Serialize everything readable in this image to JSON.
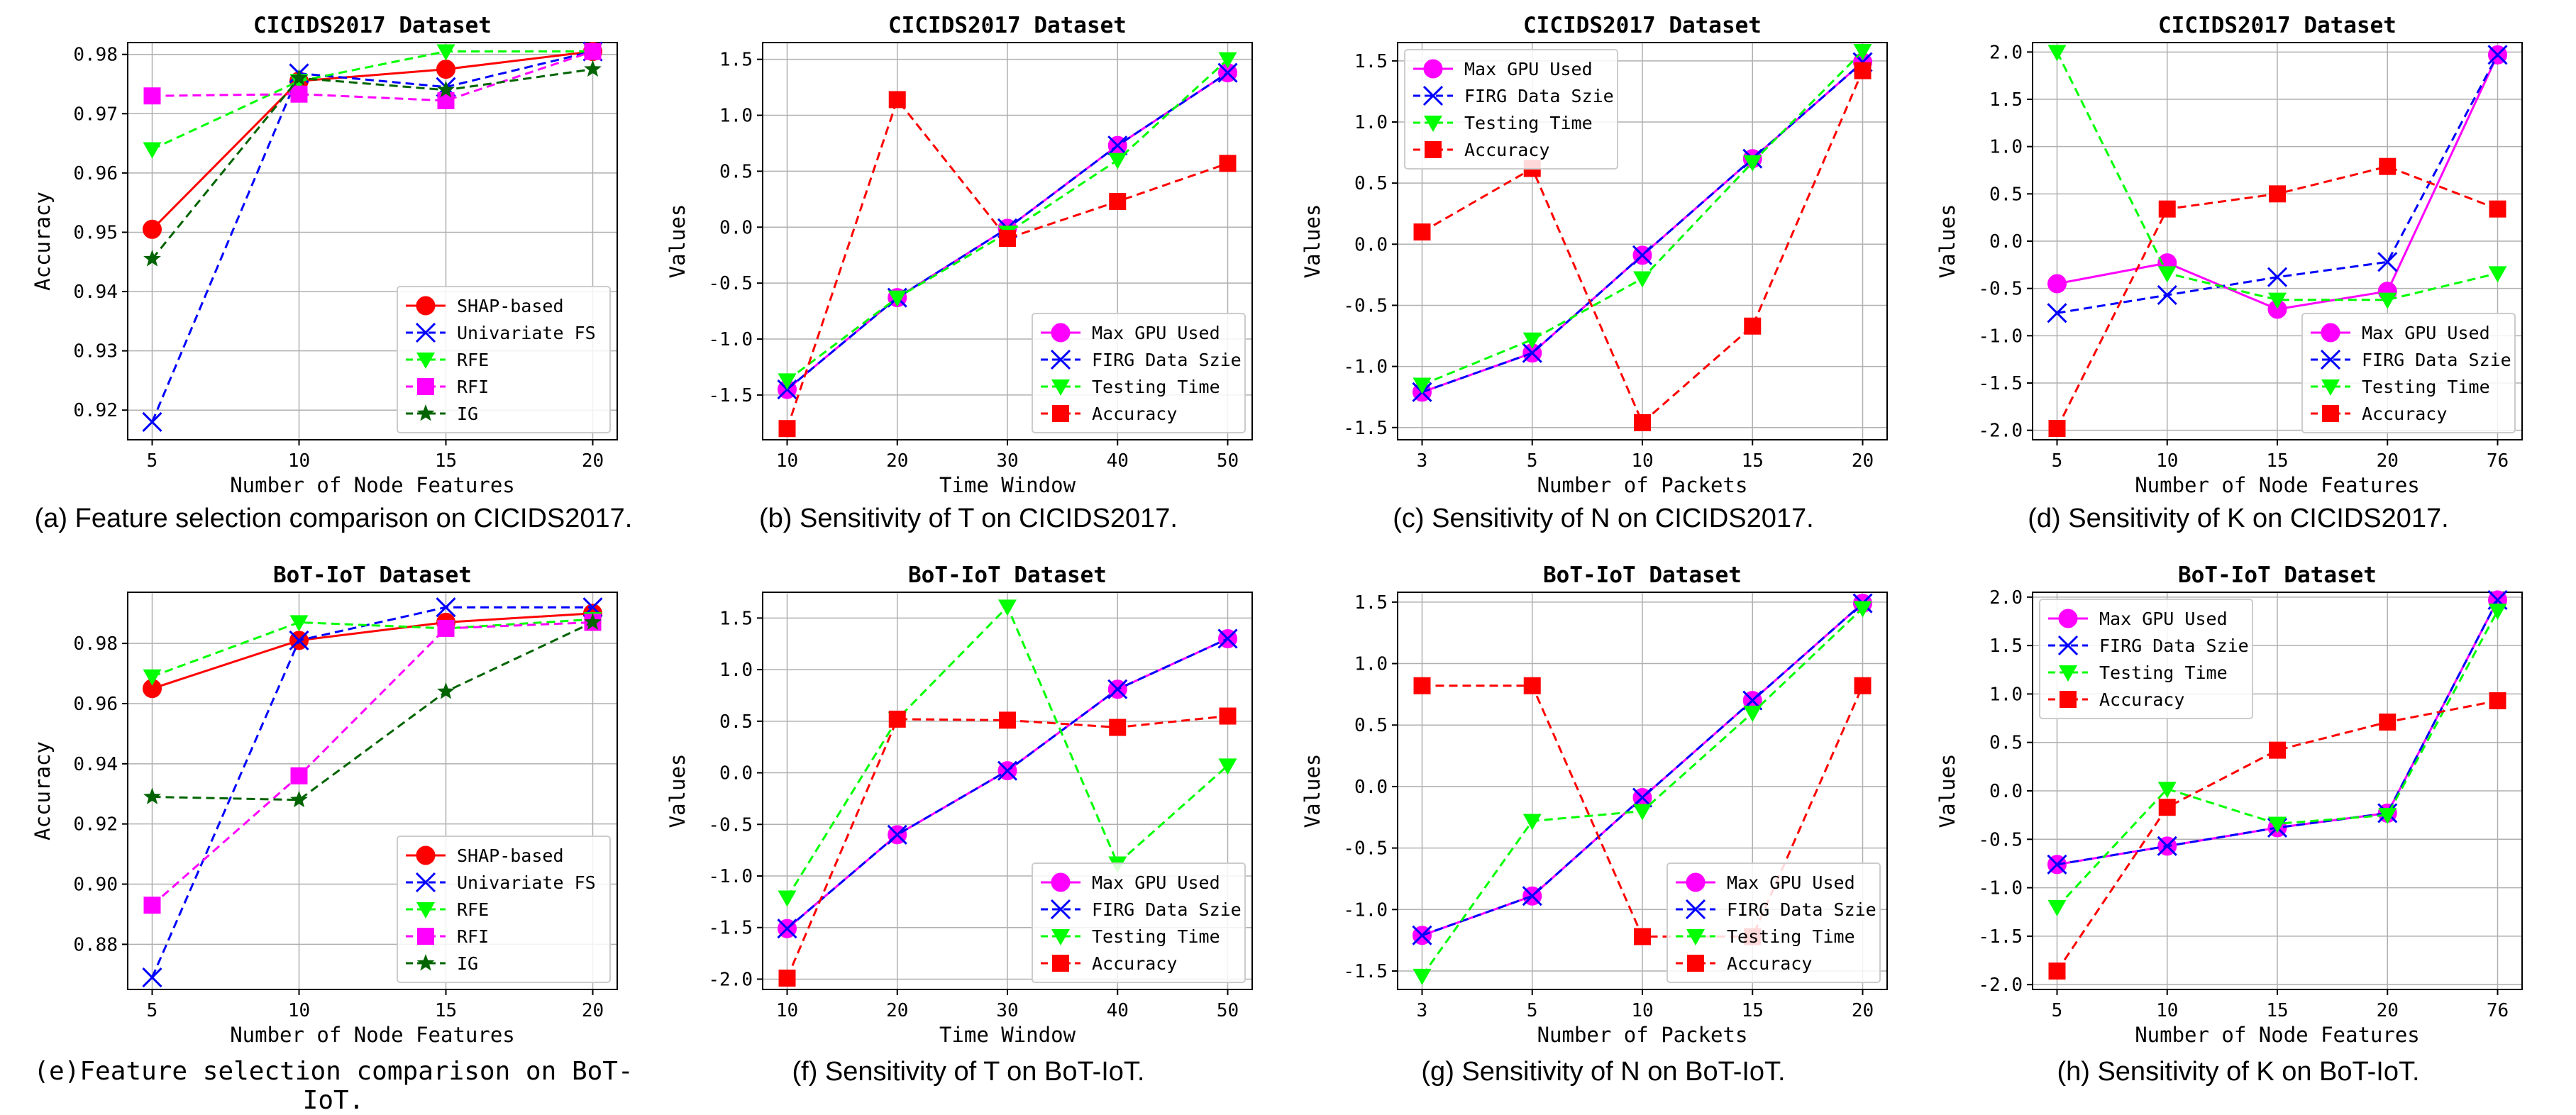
{
  "colors": {
    "red": "#ff0000",
    "blue": "#0000ff",
    "green": "#00ff00",
    "magenta": "#ff00ff",
    "darkgreen": "#006400",
    "grid": "#b0b0b0"
  },
  "captions": [
    "(a) Feature selection comparison on CICIDS2017.",
    "(b) Sensitivity of T on CICIDS2017.",
    "(c) Sensitivity of N on CICIDS2017.",
    "(d) Sensitivity of K on CICIDS2017.",
    "(e)Feature selection comparison on BoT-IoT.",
    "(f) Sensitivity of T on BoT-IoT.",
    "(g) Sensitivity of N on BoT-IoT.",
    "(h) Sensitivity of K on BoT-IoT."
  ],
  "chart_data": [
    {
      "type": "line",
      "title": "CICIDS2017 Dataset",
      "xlabel": "Number of Node Features",
      "ylabel": "Accuracy",
      "x": [
        "5",
        "10",
        "15",
        "20"
      ],
      "ylim": [
        0.915,
        0.982
      ],
      "yticks": [
        "0.92",
        "0.93",
        "0.94",
        "0.95",
        "0.96",
        "0.97",
        "0.98"
      ],
      "grid": true,
      "legend": "bottom-right",
      "series": [
        {
          "name": "SHAP-based",
          "color": "#ff0000",
          "dash": "solid",
          "marker": "circle",
          "values": [
            0.9505,
            0.9755,
            0.9775,
            0.9805
          ]
        },
        {
          "name": "Univariate FS",
          "color": "#0000ff",
          "dash": "dashed",
          "marker": "x",
          "values": [
            0.918,
            0.9768,
            0.9745,
            0.9805
          ]
        },
        {
          "name": "RFE",
          "color": "#00ff00",
          "dash": "dashed",
          "marker": "tri",
          "values": [
            0.964,
            0.9755,
            0.9805,
            0.9805
          ]
        },
        {
          "name": "RFI",
          "color": "#ff00ff",
          "dash": "dashed",
          "marker": "square",
          "values": [
            0.973,
            0.9733,
            0.9722,
            0.9805
          ]
        },
        {
          "name": "IG",
          "color": "#006400",
          "dash": "dashed",
          "marker": "star",
          "values": [
            0.9455,
            0.976,
            0.974,
            0.9775
          ]
        }
      ]
    },
    {
      "type": "line",
      "title": "CICIDS2017 Dataset",
      "xlabel": "Time Window",
      "ylabel": "Values",
      "x": [
        "10",
        "20",
        "30",
        "40",
        "50"
      ],
      "ylim": [
        -1.9,
        1.65
      ],
      "yticks": [
        "-1.5",
        "-1.0",
        "-0.5",
        "0.0",
        "0.5",
        "1.0",
        "1.5"
      ],
      "grid": true,
      "legend": "bottom-right",
      "series": [
        {
          "name": "Max GPU Used",
          "color": "#ff00ff",
          "dash": "solid",
          "marker": "circle",
          "values": [
            -1.45,
            -0.63,
            -0.01,
            0.73,
            1.38
          ]
        },
        {
          "name": "FIRG Data Szie",
          "color": "#0000ff",
          "dash": "dashed",
          "marker": "x",
          "values": [
            -1.45,
            -0.63,
            -0.01,
            0.73,
            1.38
          ]
        },
        {
          "name": "Testing Time",
          "color": "#00ff00",
          "dash": "dashed",
          "marker": "tri",
          "values": [
            -1.37,
            -0.63,
            -0.05,
            0.6,
            1.5
          ]
        },
        {
          "name": "Accuracy",
          "color": "#ff0000",
          "dash": "dashed",
          "marker": "square",
          "values": [
            -1.8,
            1.14,
            -0.1,
            0.23,
            0.57
          ]
        }
      ]
    },
    {
      "type": "line",
      "title": "CICIDS2017 Dataset",
      "xlabel": "Number of Packets",
      "ylabel": "Values",
      "x": [
        "3",
        "5",
        "10",
        "15",
        "20"
      ],
      "ylim": [
        -1.6,
        1.65
      ],
      "yticks": [
        "-1.5",
        "-1.0",
        "-0.5",
        "0.0",
        "0.5",
        "1.0",
        "1.5"
      ],
      "grid": true,
      "legend": "top-left",
      "series": [
        {
          "name": "Max GPU Used",
          "color": "#ff00ff",
          "dash": "solid",
          "marker": "circle",
          "values": [
            -1.21,
            -0.89,
            -0.09,
            0.7,
            1.49
          ]
        },
        {
          "name": "FIRG Data Szie",
          "color": "#0000ff",
          "dash": "dashed",
          "marker": "x",
          "values": [
            -1.21,
            -0.89,
            -0.09,
            0.7,
            1.49
          ]
        },
        {
          "name": "Testing Time",
          "color": "#00ff00",
          "dash": "dashed",
          "marker": "tri",
          "values": [
            -1.15,
            -0.78,
            -0.28,
            0.67,
            1.58
          ]
        },
        {
          "name": "Accuracy",
          "color": "#ff0000",
          "dash": "dashed",
          "marker": "square",
          "values": [
            0.1,
            0.62,
            -1.46,
            -0.67,
            1.42
          ]
        }
      ]
    },
    {
      "type": "line",
      "title": "CICIDS2017 Dataset",
      "xlabel": "Number of Node Features",
      "ylabel": "Values",
      "x": [
        "5",
        "10",
        "15",
        "20",
        "76"
      ],
      "ylim": [
        -2.1,
        2.1
      ],
      "yticks": [
        "-2.0",
        "-1.5",
        "-1.0",
        "-0.5",
        "0.0",
        "0.5",
        "1.0",
        "1.5",
        "2.0"
      ],
      "grid": true,
      "legend": "bottom-right",
      "series": [
        {
          "name": "Max GPU Used",
          "color": "#ff00ff",
          "dash": "solid",
          "marker": "circle",
          "values": [
            -0.45,
            -0.23,
            -0.72,
            -0.53,
            1.97
          ]
        },
        {
          "name": "FIRG Data Szie",
          "color": "#0000ff",
          "dash": "dashed",
          "marker": "x",
          "values": [
            -0.76,
            -0.57,
            -0.38,
            -0.22,
            1.97
          ]
        },
        {
          "name": "Testing Time",
          "color": "#00ff00",
          "dash": "dashed",
          "marker": "tri",
          "values": [
            2.0,
            -0.34,
            -0.62,
            -0.62,
            -0.34
          ]
        },
        {
          "name": "Accuracy",
          "color": "#ff0000",
          "dash": "dashed",
          "marker": "square",
          "values": [
            -1.98,
            0.34,
            0.5,
            0.79,
            0.34
          ]
        }
      ]
    },
    {
      "type": "line",
      "title": "BoT-IoT Dataset",
      "xlabel": "Number of Node Features",
      "ylabel": "Accuracy",
      "x": [
        "5",
        "10",
        "15",
        "20"
      ],
      "ylim": [
        0.865,
        0.997
      ],
      "yticks": [
        "0.88",
        "0.90",
        "0.92",
        "0.94",
        "0.96",
        "0.98"
      ],
      "grid": true,
      "legend": "bottom-right",
      "series": [
        {
          "name": "SHAP-based",
          "color": "#ff0000",
          "dash": "solid",
          "marker": "circle",
          "values": [
            0.965,
            0.981,
            0.987,
            0.99
          ]
        },
        {
          "name": "Univariate FS",
          "color": "#0000ff",
          "dash": "dashed",
          "marker": "x",
          "values": [
            0.869,
            0.981,
            0.992,
            0.992
          ]
        },
        {
          "name": "RFE",
          "color": "#00ff00",
          "dash": "dashed",
          "marker": "tri",
          "values": [
            0.969,
            0.987,
            0.985,
            0.988
          ]
        },
        {
          "name": "RFI",
          "color": "#ff00ff",
          "dash": "dashed",
          "marker": "square",
          "values": [
            0.893,
            0.936,
            0.985,
            0.987
          ]
        },
        {
          "name": "IG",
          "color": "#006400",
          "dash": "dashed",
          "marker": "star",
          "values": [
            0.929,
            0.928,
            0.964,
            0.987
          ]
        }
      ]
    },
    {
      "type": "line",
      "title": "BoT-IoT Dataset",
      "xlabel": "Time Window",
      "ylabel": "Values",
      "x": [
        "10",
        "20",
        "30",
        "40",
        "50"
      ],
      "ylim": [
        -2.1,
        1.75
      ],
      "yticks": [
        "-2.0",
        "-1.5",
        "-1.0",
        "-0.5",
        "0.0",
        "0.5",
        "1.0",
        "1.5"
      ],
      "grid": true,
      "legend": "bottom-right",
      "series": [
        {
          "name": "Max GPU Used",
          "color": "#ff00ff",
          "dash": "solid",
          "marker": "circle",
          "values": [
            -1.51,
            -0.6,
            0.02,
            0.81,
            1.3
          ]
        },
        {
          "name": "FIRG Data Szie",
          "color": "#0000ff",
          "dash": "dashed",
          "marker": "x",
          "values": [
            -1.51,
            -0.6,
            0.02,
            0.81,
            1.3
          ]
        },
        {
          "name": "Testing Time",
          "color": "#00ff00",
          "dash": "dashed",
          "marker": "tri",
          "values": [
            -1.21,
            0.52,
            1.61,
            -0.88,
            0.07
          ]
        },
        {
          "name": "Accuracy",
          "color": "#ff0000",
          "dash": "dashed",
          "marker": "square",
          "values": [
            -1.99,
            0.52,
            0.51,
            0.44,
            0.55
          ]
        }
      ]
    },
    {
      "type": "line",
      "title": "BoT-IoT Dataset",
      "xlabel": "Number of Packets",
      "ylabel": "Values",
      "x": [
        "3",
        "5",
        "10",
        "15",
        "20"
      ],
      "ylim": [
        -1.65,
        1.58
      ],
      "yticks": [
        "-1.5",
        "-1.0",
        "-0.5",
        "0.0",
        "0.5",
        "1.0",
        "1.5"
      ],
      "grid": true,
      "legend": "bottom-right",
      "series": [
        {
          "name": "Max GPU Used",
          "color": "#ff00ff",
          "dash": "solid",
          "marker": "circle",
          "values": [
            -1.21,
            -0.89,
            -0.09,
            0.7,
            1.49
          ]
        },
        {
          "name": "FIRG Data Szie",
          "color": "#0000ff",
          "dash": "dashed",
          "marker": "x",
          "values": [
            -1.21,
            -0.89,
            -0.09,
            0.7,
            1.49
          ]
        },
        {
          "name": "Testing Time",
          "color": "#00ff00",
          "dash": "dashed",
          "marker": "tri",
          "values": [
            -1.54,
            -0.28,
            -0.2,
            0.6,
            1.45
          ]
        },
        {
          "name": "Accuracy",
          "color": "#ff0000",
          "dash": "dashed",
          "marker": "square",
          "values": [
            0.82,
            0.82,
            -1.22,
            -1.22,
            0.82
          ]
        }
      ]
    },
    {
      "type": "line",
      "title": "BoT-IoT Dataset",
      "xlabel": "Number of Node Features",
      "ylabel": "Values",
      "x": [
        "5",
        "10",
        "15",
        "20",
        "76"
      ],
      "ylim": [
        -2.05,
        2.05
      ],
      "yticks": [
        "-2.0",
        "-1.5",
        "-1.0",
        "-0.5",
        "0.0",
        "0.5",
        "1.0",
        "1.5",
        "2.0"
      ],
      "grid": true,
      "legend": "top-left",
      "series": [
        {
          "name": "Max GPU Used",
          "color": "#ff00ff",
          "dash": "solid",
          "marker": "circle",
          "values": [
            -0.76,
            -0.57,
            -0.38,
            -0.23,
            1.97
          ]
        },
        {
          "name": "FIRG Data Szie",
          "color": "#0000ff",
          "dash": "dashed",
          "marker": "x",
          "values": [
            -0.76,
            -0.57,
            -0.38,
            -0.23,
            1.97
          ]
        },
        {
          "name": "Testing Time",
          "color": "#00ff00",
          "dash": "dashed",
          "marker": "tri",
          "values": [
            -1.2,
            0.02,
            -0.34,
            -0.25,
            1.86
          ]
        },
        {
          "name": "Accuracy",
          "color": "#ff0000",
          "dash": "dashed",
          "marker": "square",
          "values": [
            -1.86,
            -0.17,
            0.42,
            0.71,
            0.93
          ]
        }
      ]
    }
  ]
}
